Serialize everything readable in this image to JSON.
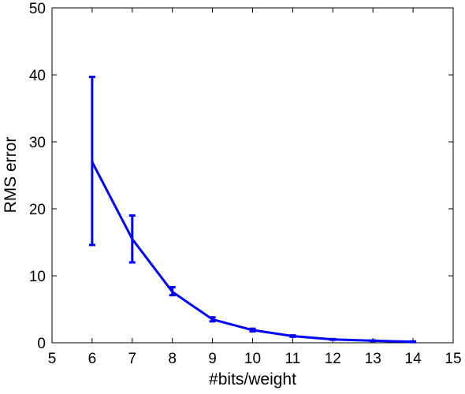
{
  "chart_data": {
    "type": "line",
    "xlabel": "#bits/weight",
    "ylabel": "RMS error",
    "xlim": [
      5,
      15
    ],
    "ylim": [
      0,
      50
    ],
    "xticks": [
      5,
      6,
      7,
      8,
      9,
      10,
      11,
      12,
      13,
      14,
      15
    ],
    "yticks": [
      0,
      10,
      20,
      30,
      40,
      50
    ],
    "grid": false,
    "series": [
      {
        "color": "#0000ff",
        "x": [
          6,
          7,
          8,
          9,
          10,
          11,
          12,
          13,
          14
        ],
        "y": [
          27,
          15.5,
          7.6,
          3.5,
          1.9,
          1.0,
          0.5,
          0.3,
          0.15
        ],
        "error_low": [
          14.6,
          12.0,
          7.1,
          3.2,
          1.7,
          0.9,
          0.45,
          0.25,
          0.1
        ],
        "error_high": [
          39.7,
          19.0,
          8.3,
          3.8,
          2.1,
          1.1,
          0.55,
          0.35,
          0.2
        ]
      }
    ]
  }
}
